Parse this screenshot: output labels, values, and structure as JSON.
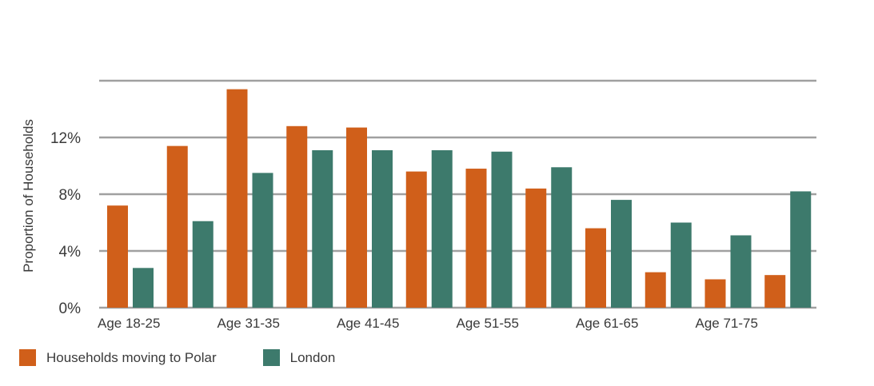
{
  "chart_data": {
    "type": "bar",
    "ylabel": "Proportion of Households",
    "xlabel": "",
    "title": "",
    "ylim": [
      0,
      16
    ],
    "yticks": [
      0,
      4,
      8,
      12
    ],
    "ytick_labels": [
      "0%",
      "4%",
      "8%",
      "12%"
    ],
    "gridlines": [
      0,
      4,
      8,
      12,
      16
    ],
    "grid": true,
    "legend_position": "bottom-left",
    "categories": [
      "Age 18-25",
      "",
      "Age 31-35",
      "",
      "Age 41-45",
      "",
      "Age 51-55",
      "",
      "Age 61-65",
      "",
      "Age 71-75",
      ""
    ],
    "series": [
      {
        "name": "Households moving to Polar",
        "color": "#d05f1a",
        "values": [
          7.2,
          11.4,
          15.4,
          12.8,
          12.7,
          9.6,
          9.8,
          8.4,
          5.6,
          2.5,
          2.0,
          2.3
        ]
      },
      {
        "name": "London",
        "color": "#3d7a6c",
        "values": [
          2.8,
          6.1,
          9.5,
          11.1,
          11.1,
          11.1,
          11.0,
          9.9,
          7.6,
          6.0,
          5.1,
          8.2
        ]
      }
    ]
  }
}
